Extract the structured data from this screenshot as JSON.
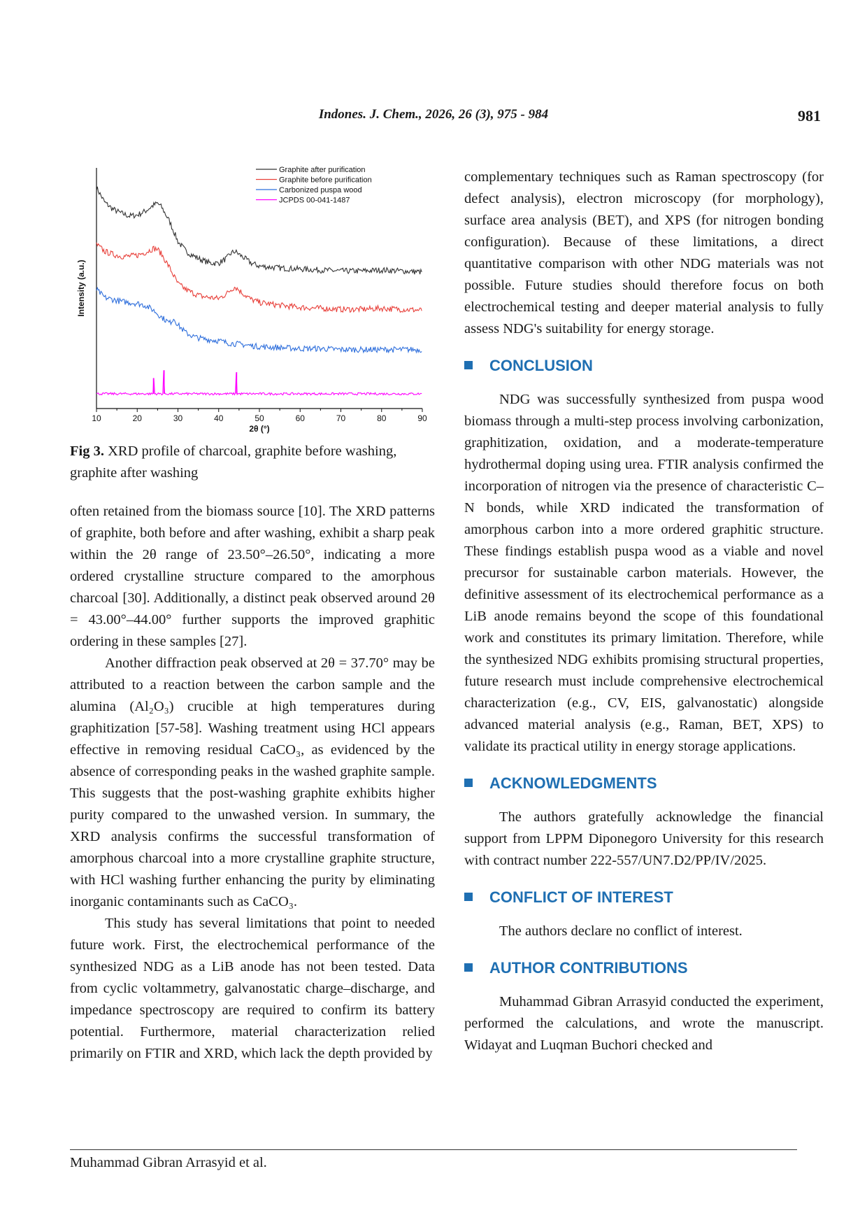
{
  "header": {
    "journal": "Indones. J. Chem., 2026, 26 (3), 975 - 984",
    "page_number": "981"
  },
  "figure": {
    "caption_label": "Fig 3.",
    "caption_text": " XRD profile of charcoal, graphite before washing, graphite after washing"
  },
  "chart_data": {
    "type": "line",
    "title": "",
    "xlabel": "2θ (°)",
    "ylabel": "Intensity (a.u.)",
    "xlim": [
      10,
      90
    ],
    "x_ticks": [
      10,
      20,
      30,
      40,
      50,
      60,
      70,
      80,
      90
    ],
    "legend_position": "top-right",
    "series": [
      {
        "name": "Graphite after purification",
        "color": "#333333",
        "x": [
          10,
          12,
          14,
          16,
          18,
          20,
          22,
          24,
          25,
          26,
          28,
          30,
          32,
          34,
          36,
          38,
          40,
          42,
          43,
          44,
          46,
          48,
          50,
          55,
          60,
          65,
          70,
          75,
          80,
          85,
          90
        ],
        "y": [
          1.7,
          1.55,
          1.48,
          1.44,
          1.41,
          1.42,
          1.46,
          1.52,
          1.54,
          1.5,
          1.35,
          1.15,
          1.05,
          1.0,
          0.96,
          0.93,
          0.93,
          0.98,
          1.03,
          1.05,
          0.99,
          0.93,
          0.9,
          0.88,
          0.87,
          0.86,
          0.85,
          0.85,
          0.86,
          0.85,
          0.84
        ]
      },
      {
        "name": "Graphite before purification",
        "color": "#e8403a",
        "x": [
          10,
          12,
          14,
          16,
          18,
          20,
          22,
          24,
          25,
          26,
          28,
          30,
          32,
          34,
          36,
          38,
          40,
          42,
          43,
          44,
          46,
          48,
          50,
          55,
          60,
          65,
          70,
          75,
          80,
          85,
          90
        ],
        "y": [
          1.12,
          1.05,
          1.02,
          1.0,
          1.0,
          1.01,
          1.04,
          1.08,
          1.07,
          1.02,
          0.88,
          0.72,
          0.66,
          0.62,
          0.59,
          0.58,
          0.57,
          0.62,
          0.66,
          0.69,
          0.62,
          0.56,
          0.53,
          0.5,
          0.48,
          0.47,
          0.46,
          0.46,
          0.47,
          0.46,
          0.45
        ]
      },
      {
        "name": "Carbonized puspa wood",
        "color": "#2f6fdc",
        "x": [
          10,
          12,
          14,
          16,
          18,
          20,
          22,
          24,
          26,
          28,
          29,
          30,
          32,
          34,
          36,
          38,
          40,
          42,
          44,
          46,
          50,
          55,
          60,
          65,
          70,
          75,
          80,
          85,
          90
        ],
        "y": [
          0.66,
          0.58,
          0.56,
          0.54,
          0.53,
          0.52,
          0.5,
          0.45,
          0.38,
          0.32,
          0.37,
          0.3,
          0.22,
          0.18,
          0.16,
          0.15,
          0.14,
          0.12,
          0.11,
          0.1,
          0.08,
          0.07,
          0.06,
          0.06,
          0.05,
          0.05,
          0.05,
          0.05,
          0.05
        ]
      },
      {
        "name": "JCPDS 00-041-1487",
        "color": "#ff00ff",
        "x": [
          10,
          90
        ],
        "y": [
          -0.4,
          -0.4
        ],
        "peaks": [
          {
            "x": 24.0,
            "height": 0.16
          },
          {
            "x": 26.6,
            "height": 0.24
          },
          {
            "x": 44.4,
            "height": 0.22
          }
        ]
      }
    ]
  },
  "left_column": [
    "often retained from the biomass source [10]. The XRD patterns of graphite, both before and after washing, exhibit a sharp peak within the 2θ range of 23.50°–26.50°, indicating a more ordered crystalline structure compared to the amorphous charcoal [30]. Additionally, a distinct peak observed around 2θ = 43.00°–44.00° further supports the improved graphitic ordering in these samples [27].",
    "Another diffraction peak observed at 2θ = 37.70° may be attributed to a reaction between the carbon sample and the alumina (Al₂O₃) crucible at high temperatures during graphitization [57-58]. Washing treatment using HCl appears effective in removing residual CaCO₃, as evidenced by the absence of corresponding peaks in the washed graphite sample. This suggests that the post-washing graphite exhibits higher purity compared to the unwashed version. In summary, the XRD analysis confirms the successful transformation of amorphous charcoal into a more crystalline graphite structure, with HCl washing further enhancing the purity by eliminating inorganic contaminants such as CaCO₃.",
    "This study has several limitations that point to needed future work. First, the electrochemical performance of the synthesized NDG as a LiB anode has not been tested. Data from cyclic voltammetry, galvanostatic charge–discharge, and impedance spectroscopy are required to confirm its battery potential. Furthermore, material characterization relied primarily on FTIR and XRD, which lack the depth provided by"
  ],
  "right_column": {
    "intro": "complementary techniques such as Raman spectroscopy (for defect analysis), electron microscopy (for morphology), surface area analysis (BET), and XPS (for nitrogen bonding configuration). Because of these limitations, a direct quantitative comparison with other NDG materials was not possible. Future studies should therefore focus on both electrochemical testing and deeper material analysis to fully assess NDG's suitability for energy storage.",
    "sections": [
      {
        "heading": "CONCLUSION",
        "body": "NDG was successfully synthesized from puspa wood biomass through a multi-step process involving carbonization, graphitization, oxidation, and a moderate-temperature hydrothermal doping using urea. FTIR analysis confirmed the incorporation of nitrogen via the presence of characteristic C–N bonds, while XRD indicated the transformation of amorphous carbon into a more ordered graphitic structure. These findings establish puspa wood as a viable and novel precursor for sustainable carbon materials. However, the definitive assessment of its electrochemical performance as a LiB anode remains beyond the scope of this foundational work and constitutes its primary limitation. Therefore, while the synthesized NDG exhibits promising structural properties, future research must include comprehensive electrochemical characterization (e.g., CV, EIS, galvanostatic) alongside advanced material analysis (e.g., Raman, BET, XPS) to validate its practical utility in energy storage applications."
      },
      {
        "heading": "ACKNOWLEDGMENTS",
        "body": "The authors gratefully acknowledge the financial support from LPPM Diponegoro University for this research with contract number 222-557/UN7.D2/PP/IV/2025."
      },
      {
        "heading": "CONFLICT OF INTEREST",
        "body": "The authors declare no conflict of interest."
      },
      {
        "heading": "AUTHOR CONTRIBUTIONS",
        "body": "Muhammad Gibran Arrasyid conducted the experiment, performed the calculations, and wrote the manuscript. Widayat and Luqman Buchori checked and"
      }
    ]
  },
  "footer": {
    "authors": "Muhammad Gibran Arrasyid et al."
  },
  "colors": {
    "heading_blue": "#1f6fb2"
  }
}
